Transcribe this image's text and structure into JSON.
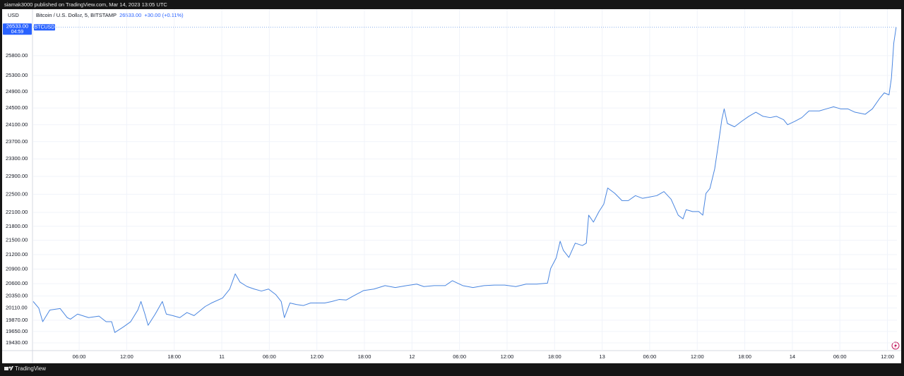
{
  "header": "siamak3000 published on TradingView.com, Mar 14, 2023 13:05 UTC",
  "footer": "TradingView",
  "chart_data": {
    "type": "line",
    "title": "Bitcoin / U.S. Dollar, 5, BITSTAMP",
    "last_price": "26533.00",
    "change": "+30.00 (+0.11%)",
    "countdown": "04:59",
    "y_axis_label": "USD",
    "log_scale": true,
    "grid": true,
    "xlim": [
      0.2,
      109.2
    ],
    "ylim": [
      19282,
      26937
    ],
    "xticks": [
      {
        "value": 6,
        "label": "06:00"
      },
      {
        "value": 12,
        "label": "12:00"
      },
      {
        "value": 18,
        "label": "18:00"
      },
      {
        "value": 24,
        "label": "11"
      },
      {
        "value": 30,
        "label": "06:00"
      },
      {
        "value": 36,
        "label": "12:00"
      },
      {
        "value": 42,
        "label": "18:00"
      },
      {
        "value": 48,
        "label": "12"
      },
      {
        "value": 54,
        "label": "06:00"
      },
      {
        "value": 60,
        "label": "12:00"
      },
      {
        "value": 66,
        "label": "18:00"
      },
      {
        "value": 72,
        "label": "13"
      },
      {
        "value": 78,
        "label": "06:00"
      },
      {
        "value": 84,
        "label": "12:00"
      },
      {
        "value": 90,
        "label": "18:00"
      },
      {
        "value": 96,
        "label": "14"
      },
      {
        "value": 102,
        "label": "06:00"
      },
      {
        "value": 108,
        "label": "12:00"
      }
    ],
    "yticks": [
      {
        "value": 19430,
        "label": "19430.00"
      },
      {
        "value": 19650,
        "label": "19650.00"
      },
      {
        "value": 19870,
        "label": "19870.00"
      },
      {
        "value": 20110,
        "label": "20110.00"
      },
      {
        "value": 20350,
        "label": "20350.00"
      },
      {
        "value": 20600,
        "label": "20600.00"
      },
      {
        "value": 20900,
        "label": "20900.00"
      },
      {
        "value": 21200,
        "label": "21200.00"
      },
      {
        "value": 21500,
        "label": "21500.00"
      },
      {
        "value": 21800,
        "label": "21800.00"
      },
      {
        "value": 22100,
        "label": "22100.00"
      },
      {
        "value": 22500,
        "label": "22500.00"
      },
      {
        "value": 22900,
        "label": "22900.00"
      },
      {
        "value": 23300,
        "label": "23300.00"
      },
      {
        "value": 23700,
        "label": "23700.00"
      },
      {
        "value": 24100,
        "label": "24100.00"
      },
      {
        "value": 24500,
        "label": "24500.00"
      },
      {
        "value": 24900,
        "label": "24900.00"
      },
      {
        "value": 25300,
        "label": "25300.00"
      },
      {
        "value": 25800,
        "label": "25800.00"
      }
    ],
    "x": [
      0.2,
      0.9,
      1.4,
      2.3,
      3.6,
      4.5,
      4.9,
      5.8,
      7.2,
      8.5,
      9.4,
      10.1,
      10.5,
      11.6,
      12.5,
      13.4,
      13.8,
      14.3,
      14.7,
      15.6,
      16.5,
      17.0,
      17.8,
      18.7,
      19.6,
      20.5,
      21.9,
      22.7,
      24.1,
      25.0,
      25.7,
      26.3,
      27.2,
      28.1,
      29.0,
      29.9,
      30.8,
      31.5,
      31.9,
      32.6,
      33.4,
      34.3,
      35.2,
      36.1,
      37.0,
      37.9,
      38.8,
      39.7,
      40.6,
      41.9,
      43.2,
      44.6,
      45.9,
      47.3,
      48.6,
      49.5,
      50.8,
      52.2,
      53.1,
      54.4,
      55.7,
      57.1,
      58.4,
      59.7,
      61.1,
      62.4,
      63.7,
      65.1,
      65.5,
      66.2,
      66.7,
      67.1,
      67.8,
      68.6,
      69.5,
      70.0,
      70.3,
      70.9,
      71.6,
      72.2,
      72.7,
      73.6,
      74.5,
      75.3,
      76.2,
      77.1,
      78.0,
      78.9,
      79.8,
      80.7,
      81.6,
      82.2,
      82.6,
      83.4,
      84.2,
      84.7,
      85.1,
      85.6,
      86.2,
      86.6,
      87.1,
      87.4,
      87.8,
      88.7,
      89.6,
      90.5,
      91.4,
      92.3,
      93.2,
      94.0,
      94.9,
      95.4,
      96.3,
      97.2,
      98.1,
      99.4,
      100.3,
      101.2,
      102.1,
      103.0,
      103.9,
      105.2,
      106.1,
      107.0,
      107.6,
      108.2,
      108.5,
      108.8,
      109.1
    ],
    "series": [
      {
        "name": "BTCUSD",
        "color": "#4a86e0",
        "values": [
          20240,
          20110,
          19840,
          20070,
          20100,
          19920,
          19890,
          19990,
          19920,
          19950,
          19840,
          19840,
          19630,
          19740,
          19840,
          20070,
          20240,
          19990,
          19770,
          19990,
          20240,
          19990,
          19960,
          19920,
          20020,
          19960,
          20140,
          20210,
          20310,
          20490,
          20800,
          20630,
          20540,
          20490,
          20450,
          20490,
          20380,
          20240,
          19920,
          20210,
          20180,
          20160,
          20210,
          20210,
          20210,
          20240,
          20280,
          20270,
          20350,
          20460,
          20490,
          20560,
          20520,
          20560,
          20590,
          20540,
          20560,
          20560,
          20660,
          20560,
          20520,
          20560,
          20570,
          20570,
          20540,
          20590,
          20590,
          20610,
          20910,
          21130,
          21480,
          21290,
          21140,
          21440,
          21390,
          21440,
          22040,
          21890,
          22120,
          22280,
          22640,
          22520,
          22360,
          22360,
          22470,
          22410,
          22440,
          22470,
          22560,
          22390,
          22040,
          21960,
          22160,
          22120,
          22120,
          22040,
          22520,
          22630,
          23070,
          23560,
          24220,
          24480,
          24130,
          24050,
          24180,
          24300,
          24400,
          24300,
          24270,
          24300,
          24220,
          24100,
          24180,
          24270,
          24430,
          24430,
          24480,
          24530,
          24480,
          24480,
          24400,
          24350,
          24480,
          24730,
          24870,
          24820,
          25230,
          26120,
          26533
        ]
      }
    ]
  }
}
